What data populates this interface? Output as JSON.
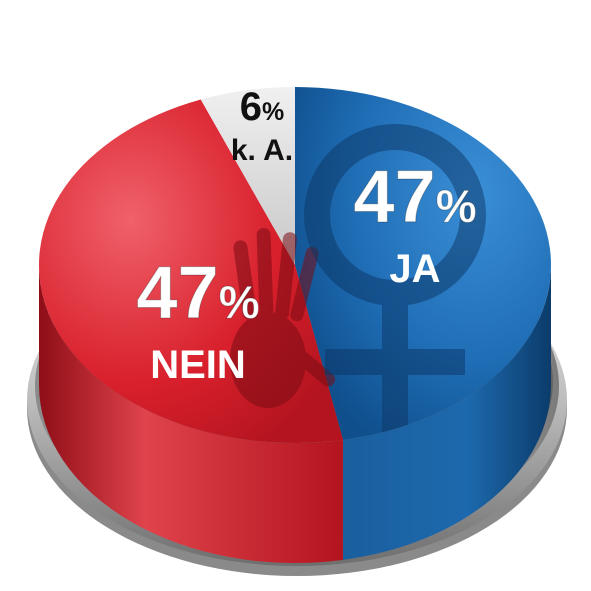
{
  "chart_data": {
    "type": "pie",
    "slices": [
      {
        "label": "JA",
        "value": 47,
        "value_text": "47",
        "unit": "%",
        "color": "#1f6db5"
      },
      {
        "label": "NEIN",
        "value": 47,
        "value_text": "47",
        "unit": "%",
        "color": "#d8202c"
      },
      {
        "label": "k. A.",
        "value": 6,
        "value_text": "6",
        "unit": "%",
        "color": "#d9d9d9"
      }
    ]
  },
  "icons": [
    "venus-symbol-icon",
    "handprint-icon"
  ]
}
